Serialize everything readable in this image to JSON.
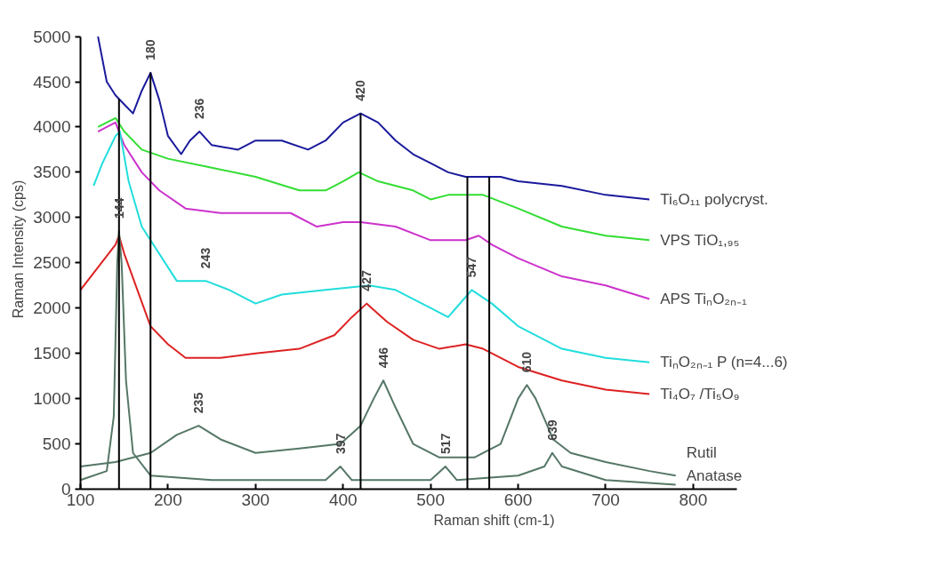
{
  "chart_data": {
    "type": "line",
    "xlabel": "Raman shift (cm-1)",
    "ylabel": "Raman Intensity (cps)",
    "xlim": [
      100,
      850
    ],
    "ylim": [
      0,
      5000
    ],
    "xticks": [
      100,
      200,
      300,
      400,
      500,
      600,
      700,
      800
    ],
    "yticks": [
      0,
      500,
      1000,
      1500,
      2000,
      2500,
      3000,
      3500,
      4000,
      4500,
      5000
    ],
    "grid": false,
    "line_style": "solid",
    "marker": "none",
    "series": [
      {
        "name": "Ti₆O₁₁ polycryst.",
        "color": "#1a1a9c",
        "x": [
          120,
          130,
          140,
          150,
          160,
          170,
          180,
          190,
          200,
          215,
          225,
          236,
          250,
          280,
          300,
          330,
          360,
          380,
          400,
          420,
          440,
          460,
          480,
          500,
          520,
          540,
          560,
          580,
          600,
          650,
          700,
          750
        ],
        "values": [
          5000,
          4500,
          4350,
          4250,
          4150,
          4400,
          4600,
          4300,
          3900,
          3700,
          3850,
          3950,
          3800,
          3750,
          3850,
          3850,
          3750,
          3850,
          4050,
          4150,
          4050,
          3850,
          3700,
          3600,
          3500,
          3450,
          3450,
          3450,
          3400,
          3350,
          3250,
          3200
        ]
      },
      {
        "name": "VPS TiO₁,₉₅",
        "color": "#33dd33",
        "x": [
          120,
          130,
          140,
          150,
          170,
          200,
          250,
          300,
          350,
          380,
          400,
          418,
          440,
          480,
          500,
          520,
          560,
          600,
          650,
          700,
          750
        ],
        "values": [
          4000,
          4050,
          4100,
          3950,
          3750,
          3650,
          3550,
          3450,
          3300,
          3300,
          3400,
          3500,
          3400,
          3300,
          3200,
          3250,
          3250,
          3100,
          2900,
          2800,
          2750
        ]
      },
      {
        "name": "APS TiₙO₂ₙ₋₁",
        "color": "#cc33cc",
        "x": [
          120,
          130,
          140,
          150,
          170,
          190,
          220,
          260,
          300,
          340,
          370,
          400,
          420,
          460,
          500,
          540,
          555,
          570,
          600,
          650,
          700,
          750
        ],
        "values": [
          3950,
          4000,
          4050,
          3800,
          3500,
          3300,
          3100,
          3050,
          3050,
          3050,
          2900,
          2950,
          2950,
          2900,
          2750,
          2750,
          2800,
          2700,
          2550,
          2350,
          2250,
          2100
        ]
      },
      {
        "name": "TiₙO₂ₙ₋₁ P (n=4...6)",
        "color": "#22dddd",
        "x": [
          115,
          125,
          140,
          145,
          155,
          170,
          190,
          210,
          243,
          270,
          300,
          330,
          380,
          430,
          460,
          500,
          520,
          547,
          570,
          600,
          650,
          700,
          750
        ],
        "values": [
          3350,
          3600,
          3900,
          3950,
          3400,
          2900,
          2600,
          2300,
          2300,
          2200,
          2050,
          2150,
          2200,
          2250,
          2200,
          2000,
          1900,
          2200,
          2050,
          1800,
          1550,
          1450,
          1400
        ]
      },
      {
        "name": "Ti₄O₇ /Ti₅O₉",
        "color": "#dd2222",
        "x": [
          100,
          120,
          140,
          144,
          150,
          165,
          180,
          200,
          220,
          260,
          300,
          350,
          390,
          410,
          427,
          450,
          480,
          510,
          540,
          560,
          600,
          650,
          700,
          750
        ],
        "values": [
          2200,
          2450,
          2700,
          2800,
          2600,
          2200,
          1800,
          1600,
          1450,
          1450,
          1500,
          1550,
          1700,
          1900,
          2050,
          1850,
          1650,
          1550,
          1600,
          1550,
          1350,
          1200,
          1100,
          1050
        ]
      },
      {
        "name": "Rutil",
        "color": "#557766",
        "x": [
          100,
          140,
          180,
          210,
          235,
          260,
          300,
          350,
          397,
          420,
          435,
          446,
          460,
          480,
          510,
          550,
          580,
          600,
          610,
          620,
          640,
          660,
          700,
          750,
          780
        ],
        "values": [
          250,
          300,
          400,
          600,
          700,
          550,
          400,
          450,
          500,
          700,
          1000,
          1200,
          900,
          500,
          350,
          350,
          500,
          1000,
          1150,
          1000,
          550,
          400,
          300,
          200,
          150
        ]
      },
      {
        "name": "Anatase",
        "color": "#557766",
        "x": [
          100,
          130,
          138,
          142,
          144,
          147,
          152,
          160,
          180,
          250,
          380,
          397,
          410,
          500,
          517,
          530,
          600,
          630,
          639,
          650,
          700,
          780
        ],
        "values": [
          100,
          200,
          800,
          2500,
          2850,
          2500,
          1200,
          400,
          150,
          100,
          100,
          250,
          100,
          100,
          250,
          100,
          150,
          250,
          400,
          250,
          100,
          50
        ]
      }
    ],
    "ref_lines": [
      {
        "axis": "x",
        "value": 144,
        "color": "#000000"
      },
      {
        "axis": "x",
        "value": 180,
        "color": "#000000"
      },
      {
        "axis": "x",
        "value": 420,
        "color": "#000000"
      },
      {
        "axis": "x",
        "value": 542,
        "color": "#000000"
      },
      {
        "axis": "x",
        "value": 567,
        "color": "#000000"
      }
    ],
    "annotations": [
      {
        "text": "180",
        "x": 180,
        "y": 4600
      },
      {
        "text": "236",
        "x": 236,
        "y": 3950
      },
      {
        "text": "420",
        "x": 420,
        "y": 4150
      },
      {
        "text": "144",
        "x": 144,
        "y": 2850
      },
      {
        "text": "243",
        "x": 243,
        "y": 2300
      },
      {
        "text": "427",
        "x": 427,
        "y": 2050
      },
      {
        "text": "547",
        "x": 547,
        "y": 2200
      },
      {
        "text": "610",
        "x": 610,
        "y": 1150
      },
      {
        "text": "446",
        "x": 446,
        "y": 1200
      },
      {
        "text": "235",
        "x": 235,
        "y": 700
      },
      {
        "text": "397",
        "x": 397,
        "y": 250
      },
      {
        "text": "517",
        "x": 517,
        "y": 250
      },
      {
        "text": "639",
        "x": 639,
        "y": 400
      }
    ]
  }
}
